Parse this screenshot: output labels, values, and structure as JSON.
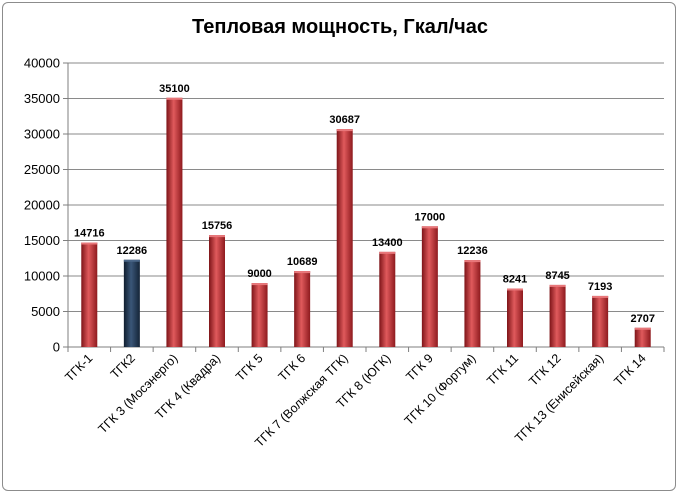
{
  "chart_data": {
    "type": "bar",
    "title": "Тепловая мощность, Гкал/час",
    "xlabel": "",
    "ylabel": "",
    "categories": [
      "ТГК-1",
      "ТГК2",
      "ТГК 3 (Мосэнерго)",
      "ТГК 4 (Квадра)",
      "ТГК 5",
      "ТГК 6",
      "ТГК 7 (Волжская ТГК)",
      "ТГК 8 (ЮГК)",
      "ТГК 9",
      "ТГК 10 (Фортум)",
      "ТГК 11",
      "ТГК 12",
      "ТГК 13 (Енисейская)",
      "ТГК 14"
    ],
    "values": [
      14716,
      12286,
      35100,
      15756,
      9000,
      10689,
      30687,
      13400,
      17000,
      12236,
      8241,
      8745,
      7193,
      2707
    ],
    "ylim": [
      0,
      40000
    ],
    "yticks": [
      0,
      5000,
      10000,
      15000,
      20000,
      25000,
      30000,
      35000,
      40000
    ],
    "grid": true,
    "legend": "none",
    "colors": {
      "bar": "#c0292e",
      "highlight": "#1f3550",
      "highlight_category": "ТГК2"
    }
  }
}
